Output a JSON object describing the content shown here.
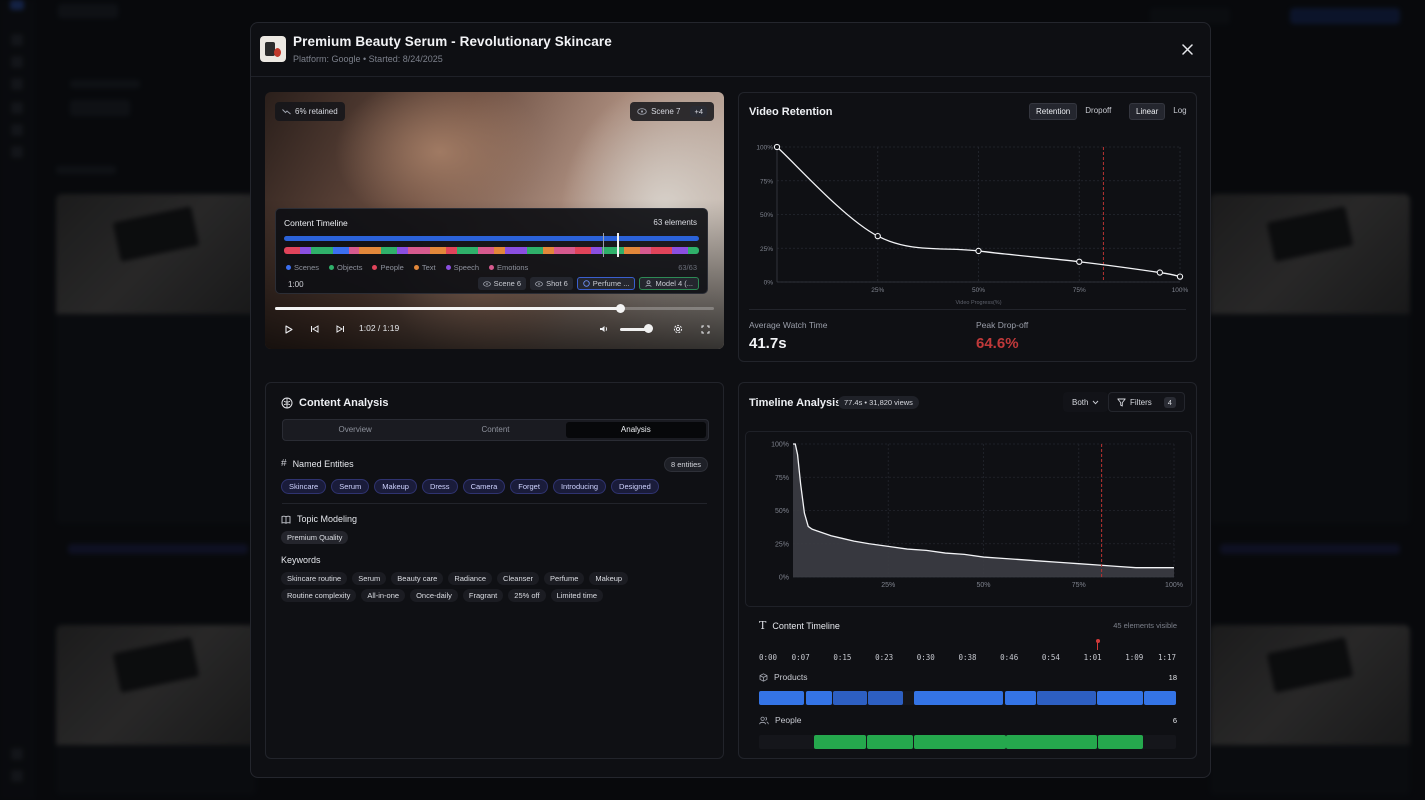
{
  "modal": {
    "title": "Premium Beauty Serum - Revolutionary Skincare",
    "subtitle": "Platform: Google • Started: 8/24/2025"
  },
  "video": {
    "retained_label": "6% retained",
    "scene_label": "Scene 7",
    "scene_extra": "+4",
    "time": "1:02 / 1:19",
    "progress": 0.786,
    "volume": 0.85
  },
  "content_timeline_overlay": {
    "title": "Content Timeline",
    "count": "63 elements",
    "legend": [
      "Scenes",
      "Objects",
      "People",
      "Text",
      "Speech",
      "Emotions"
    ],
    "legend_colors": [
      "#3b6ff0",
      "#2fb06a",
      "#e0445a",
      "#e2873a",
      "#8a4fe0",
      "#d65a8e"
    ],
    "ratio": "63/63",
    "time": "1:00",
    "chips": [
      "Scene 6",
      "Shot 6",
      "Perfume ...",
      "Model 4 (..."
    ]
  },
  "retention": {
    "title": "Video Retention",
    "toggle_a": [
      "Retention",
      "Dropoff"
    ],
    "toggle_b": [
      "Linear",
      "Log"
    ],
    "avg_label": "Average Watch Time",
    "avg_value": "41.7s",
    "peak_label": "Peak Drop-off",
    "peak_value": "64.6%",
    "peak_color": "#c0393a"
  },
  "analysis": {
    "title": "Content Analysis",
    "tabs": [
      "Overview",
      "Content",
      "Analysis"
    ],
    "entities_title": "Named Entities",
    "entities_count": "8 entities",
    "entities": [
      "Skincare",
      "Serum",
      "Makeup",
      "Dress",
      "Camera",
      "Forget",
      "Introducing",
      "Designed"
    ],
    "topic_title": "Topic Modeling",
    "topic": "Premium Quality",
    "keywords_title": "Keywords",
    "keywords": [
      "Skincare routine",
      "Serum",
      "Beauty care",
      "Radiance",
      "Cleanser",
      "Perfume",
      "Makeup",
      "Routine complexity",
      "All-in-one",
      "Once-daily",
      "Fragrant",
      "25% off",
      "Limited time"
    ]
  },
  "timeline": {
    "title": "Timeline Analysis",
    "tag": "77.4s • 31,820 views",
    "mode": "Both",
    "filters_label": "Filters",
    "filters_count": "4",
    "ct_title": "Content Timeline",
    "ct_visible": "45 elements visible",
    "ticks": [
      "0:00",
      "0:07",
      "0:15",
      "0:23",
      "0:30",
      "0:38",
      "0:46",
      "0:54",
      "1:01",
      "1:09",
      "1:17"
    ],
    "rows": [
      {
        "label": "Products",
        "count": "18"
      },
      {
        "label": "People",
        "count": "6"
      }
    ]
  },
  "chart_data": [
    {
      "type": "line",
      "xlabel": "Video Progress(%)",
      "ylabel": "",
      "x": [
        0,
        25,
        50,
        75,
        95,
        100
      ],
      "y": [
        100,
        34,
        23,
        15,
        7,
        4
      ],
      "xticks": [
        "25%",
        "50%",
        "75%",
        "100%"
      ],
      "yticks": [
        "0%",
        "25%",
        "50%",
        "75%",
        "100%"
      ],
      "xlim": [
        0,
        100
      ],
      "ylim": [
        0,
        100
      ],
      "marker_x": 81,
      "grid": true
    },
    {
      "type": "area",
      "x": [
        0,
        0.6,
        1.2,
        2,
        3,
        4,
        5,
        6,
        8,
        10,
        13,
        16,
        20,
        25,
        30,
        35,
        40,
        45,
        50,
        55,
        60,
        65,
        70,
        75,
        80,
        85,
        90,
        95,
        100
      ],
      "y": [
        100,
        100,
        92,
        70,
        48,
        38,
        36,
        35,
        33,
        31,
        29,
        27,
        25,
        23,
        21,
        20,
        18,
        17,
        15,
        14,
        13,
        12,
        11,
        10,
        9,
        8,
        7,
        7,
        7
      ],
      "xticks": [
        "25%",
        "50%",
        "75%",
        "100%"
      ],
      "yticks": [
        "0%",
        "25%",
        "50%",
        "75%",
        "100%"
      ],
      "xlim": [
        0,
        100
      ],
      "ylim": [
        0,
        100
      ],
      "marker_x": 81,
      "grid": true
    }
  ]
}
